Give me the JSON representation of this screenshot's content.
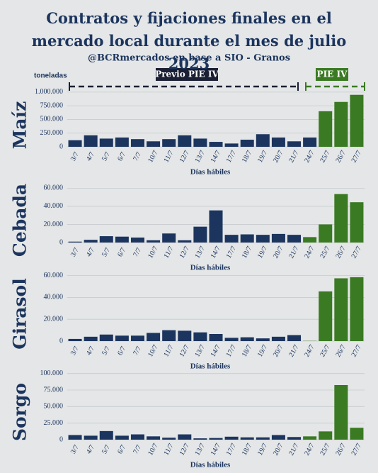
{
  "title": "Contratos y fijaciones finales en el mercado local durante el mes de julio 2023",
  "subtitle": "@BCRmercados en base a SIO - Granos",
  "unit": "toneladas",
  "periods": [
    "Previo PIE IV",
    "PIE IV"
  ],
  "chart_data": [
    {
      "type": "bar",
      "title": "Maíz",
      "xlabel": "Días hábiles",
      "categories": [
        "3/7",
        "4/7",
        "5/7",
        "6/7",
        "7/7",
        "10/7",
        "11/7",
        "12/7",
        "13/7",
        "14/7",
        "17/7",
        "18/7",
        "19/7",
        "20/7",
        "21/7",
        "24/7",
        "25/7",
        "26/7",
        "27/7"
      ],
      "values": [
        120000,
        210000,
        150000,
        170000,
        140000,
        100000,
        140000,
        210000,
        150000,
        90000,
        60000,
        130000,
        230000,
        170000,
        100000,
        170000,
        650000,
        820000,
        950000
      ],
      "colors": [
        "#1c355e",
        "#1c355e",
        "#1c355e",
        "#1c355e",
        "#1c355e",
        "#1c355e",
        "#1c355e",
        "#1c355e",
        "#1c355e",
        "#1c355e",
        "#1c355e",
        "#1c355e",
        "#1c355e",
        "#1c355e",
        "#1c355e",
        "#1c355e",
        "#3a7a22",
        "#3a7a22",
        "#3a7a22"
      ],
      "ylim": [
        0,
        1050000
      ],
      "yticks": [
        0,
        {
          "value": 250000,
          "label": "250.000"
        },
        {
          "value": 500000,
          "label": "500.000"
        },
        {
          "value": 750000,
          "label": "750.000"
        },
        {
          "value": 1000000,
          "label": "1.000.000"
        }
      ],
      "grid": true
    },
    {
      "type": "bar",
      "title": "Cebada",
      "xlabel": "Días hábiles",
      "categories": [
        "3/7",
        "4/7",
        "5/7",
        "6/7",
        "7/7",
        "10/7",
        "11/7",
        "12/7",
        "13/7",
        "14/7",
        "17/7",
        "18/7",
        "19/7",
        "20/7",
        "21/7",
        "24/7",
        "25/7",
        "26/7",
        "27/7"
      ],
      "values": [
        1000,
        3000,
        7000,
        6500,
        5500,
        2500,
        10000,
        2500,
        17500,
        35500,
        8500,
        9000,
        8500,
        9500,
        8500,
        6000,
        20000,
        53500,
        44500
      ],
      "colors": [
        "#1c355e",
        "#1c355e",
        "#1c355e",
        "#1c355e",
        "#1c355e",
        "#1c355e",
        "#1c355e",
        "#1c355e",
        "#1c355e",
        "#1c355e",
        "#1c355e",
        "#1c355e",
        "#1c355e",
        "#1c355e",
        "#1c355e",
        "#3a7a22",
        "#3a7a22",
        "#3a7a22",
        "#3a7a22"
      ],
      "ylim": [
        0,
        65000
      ],
      "yticks": [
        0,
        {
          "value": 20000,
          "label": "20.000"
        },
        {
          "value": 40000,
          "label": "40.000"
        },
        {
          "value": 60000,
          "label": "60.000"
        }
      ],
      "grid": true
    },
    {
      "type": "bar",
      "title": "Girasol",
      "xlabel": "Días hábiles",
      "categories": [
        "3/7",
        "4/7",
        "5/7",
        "6/7",
        "7/7",
        "10/7",
        "11/7",
        "12/7",
        "13/7",
        "14/7",
        "17/7",
        "18/7",
        "19/7",
        "20/7",
        "21/7",
        "24/7",
        "25/7",
        "26/7",
        "27/7"
      ],
      "values": [
        2000,
        4000,
        6000,
        5000,
        5000,
        7500,
        10000,
        9500,
        8000,
        6500,
        3000,
        3500,
        2500,
        4000,
        5500,
        200,
        45500,
        57500,
        58500
      ],
      "colors": [
        "#1c355e",
        "#1c355e",
        "#1c355e",
        "#1c355e",
        "#1c355e",
        "#1c355e",
        "#1c355e",
        "#1c355e",
        "#1c355e",
        "#1c355e",
        "#1c355e",
        "#1c355e",
        "#1c355e",
        "#1c355e",
        "#1c355e",
        "#3a7a22",
        "#3a7a22",
        "#3a7a22",
        "#3a7a22"
      ],
      "ylim": [
        0,
        63000
      ],
      "yticks": [
        0,
        {
          "value": 20000,
          "label": "20.000"
        },
        {
          "value": 40000,
          "label": "40.000"
        },
        {
          "value": 60000,
          "label": "60.000"
        }
      ],
      "grid": true
    },
    {
      "type": "bar",
      "title": "Sorgo",
      "xlabel": "Días hábiles",
      "categories": [
        "3/7",
        "4/7",
        "5/7",
        "6/7",
        "7/7",
        "10/7",
        "11/7",
        "12/7",
        "13/7",
        "14/7",
        "17/7",
        "18/7",
        "19/7",
        "20/7",
        "21/7",
        "24/7",
        "25/7",
        "26/7",
        "27/7"
      ],
      "values": [
        7000,
        6000,
        13000,
        6000,
        8000,
        5000,
        3000,
        8000,
        2000,
        2500,
        4500,
        3500,
        3500,
        7000,
        4000,
        5000,
        12500,
        82500,
        18000
      ],
      "colors": [
        "#1c355e",
        "#1c355e",
        "#1c355e",
        "#1c355e",
        "#1c355e",
        "#1c355e",
        "#1c355e",
        "#1c355e",
        "#1c355e",
        "#1c355e",
        "#1c355e",
        "#1c355e",
        "#1c355e",
        "#1c355e",
        "#1c355e",
        "#3a7a22",
        "#3a7a22",
        "#3a7a22",
        "#3a7a22"
      ],
      "ylim": [
        0,
        105000
      ],
      "yticks": [
        0,
        {
          "value": 25000,
          "label": "25.000"
        },
        {
          "value": 50000,
          "label": "50.000"
        },
        {
          "value": 75000,
          "label": "75.000"
        },
        {
          "value": 100000,
          "label": "100.000"
        }
      ],
      "grid": true
    }
  ]
}
